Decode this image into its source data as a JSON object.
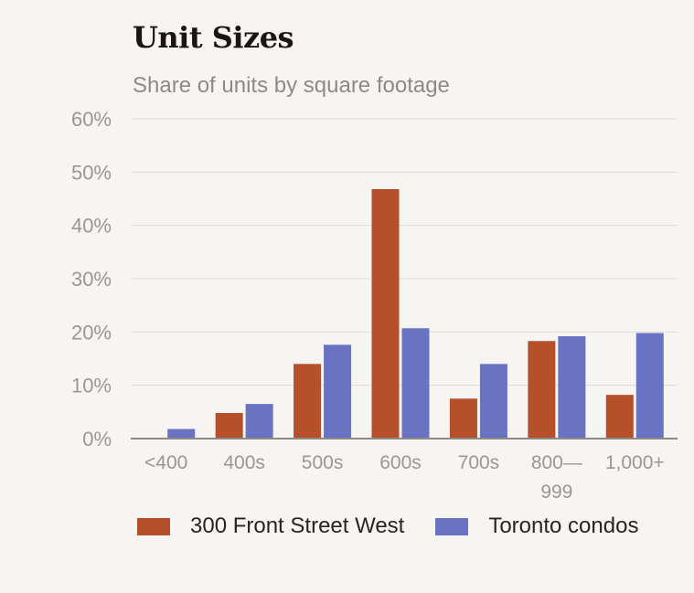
{
  "title": "Unit Sizes",
  "subtitle": "Share of units by square footage",
  "chart_data": {
    "type": "bar",
    "categories": [
      "<400",
      "400s",
      "500s",
      "600s",
      "700s",
      "800—999",
      "1,000+"
    ],
    "category_lines": [
      [
        "<400"
      ],
      [
        "400s"
      ],
      [
        "500s"
      ],
      [
        "600s"
      ],
      [
        "700s"
      ],
      [
        "800—",
        "999"
      ],
      [
        "1,000+"
      ]
    ],
    "series": [
      {
        "name": "300 Front Street West",
        "color": "#b5502b",
        "values": [
          0,
          4.8,
          14,
          46.8,
          7.5,
          18.3,
          8.2
        ]
      },
      {
        "name": "Toronto condos",
        "color": "#6a73c3",
        "values": [
          1.8,
          6.5,
          17.6,
          20.7,
          14,
          19.2,
          19.8
        ]
      }
    ],
    "ylim": [
      0,
      60
    ],
    "yticks": [
      0,
      10,
      20,
      30,
      40,
      50,
      60
    ],
    "ytick_labels": [
      "0%",
      "10%",
      "20%",
      "30%",
      "40%",
      "50%",
      "60%"
    ],
    "grid": true,
    "legend": "bottom"
  }
}
